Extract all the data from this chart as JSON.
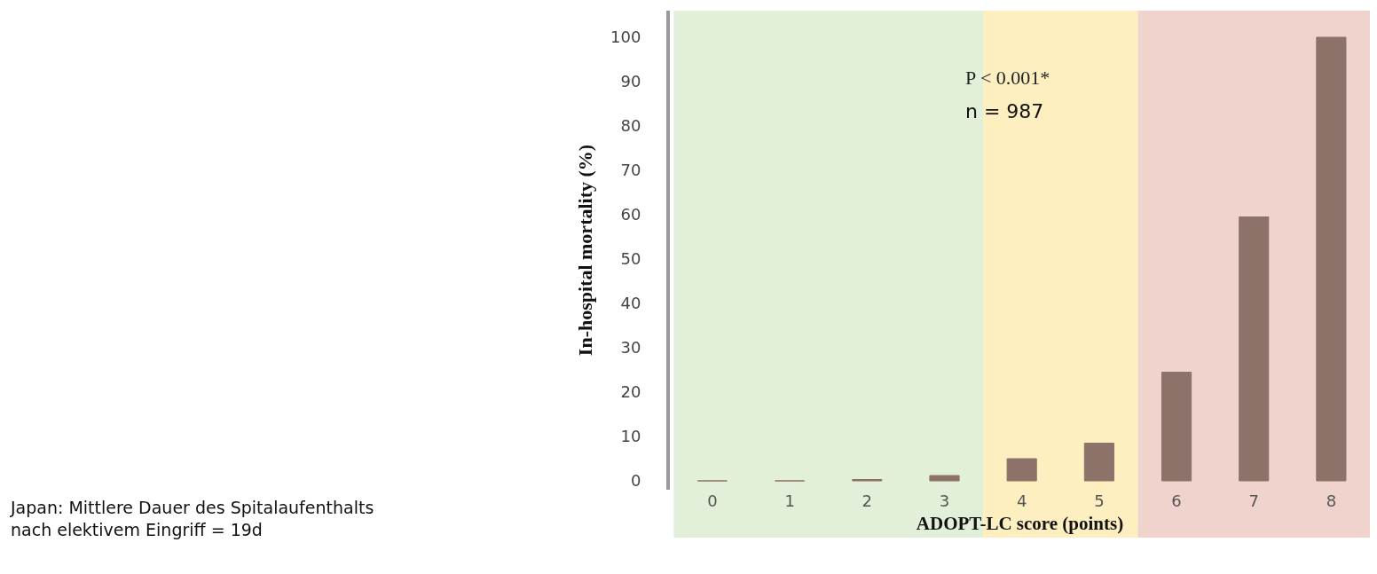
{
  "chart_data": {
    "type": "bar",
    "xlabel": "ADOPT-LC score (points)",
    "ylabel": "In-hospital mortality (%)",
    "categories": [
      "0",
      "1",
      "2",
      "3",
      "4",
      "5",
      "6",
      "7",
      "8"
    ],
    "values": [
      0,
      0,
      0.3,
      1.2,
      5,
      8.5,
      24.5,
      59.5,
      100
    ],
    "color": "#8c7268",
    "ylim": [
      -2,
      106
    ],
    "yticks": [
      0,
      10,
      20,
      30,
      40,
      50,
      60,
      70,
      80,
      90,
      100
    ],
    "grid": false,
    "legend": false,
    "bands": [
      {
        "axis": "x",
        "from": "0",
        "to": "3",
        "color": "#e2efd9"
      },
      {
        "axis": "x",
        "from": "4",
        "to": "5",
        "color": "#fdefc0"
      },
      {
        "axis": "x",
        "from": "6",
        "to": "8",
        "color": "#f0d3cc"
      }
    ],
    "annotations": [
      "P < 0.001*",
      "n = 987",
      "Japan: Mittlere Dauer des Spitalaufenthalts\nnach elektivem Eingriff = 19d"
    ]
  }
}
